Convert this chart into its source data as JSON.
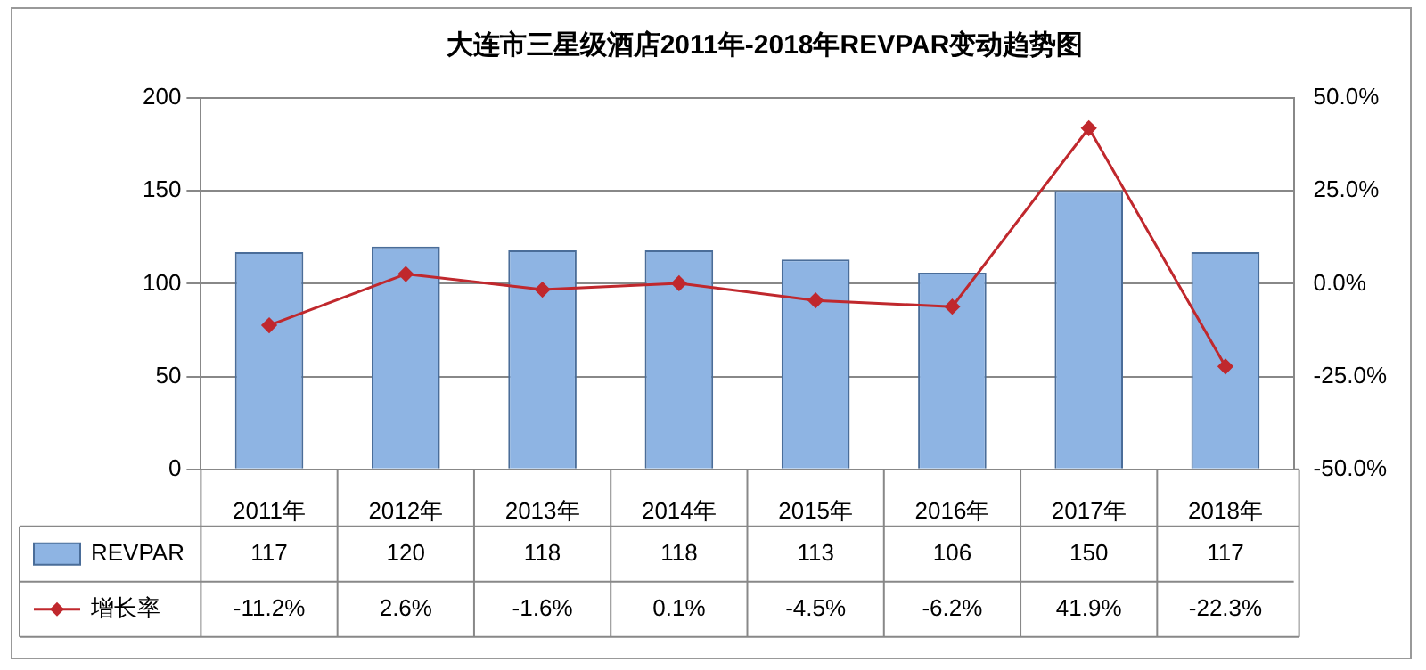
{
  "chart_data": {
    "type": "bar",
    "title": "大连市三星级酒店2011年-2018年REVPAR变动趋势图",
    "categories": [
      "2011年",
      "2012年",
      "2013年",
      "2014年",
      "2015年",
      "2016年",
      "2017年",
      "2018年"
    ],
    "series": [
      {
        "name": "REVPAR",
        "color": "#8eb4e3",
        "values": [
          117,
          120,
          118,
          118,
          113,
          106,
          150,
          117
        ]
      },
      {
        "name": "增长率",
        "type": "line",
        "axis": "y2",
        "color": "#c0282d",
        "marker": "diamond",
        "values": [
          -11.2,
          2.6,
          -1.6,
          0.1,
          -4.5,
          -6.2,
          41.9,
          -22.3
        ],
        "value_labels": [
          "-11.2%",
          "2.6%",
          "-1.6%",
          "0.1%",
          "-4.5%",
          "-6.2%",
          "41.9%",
          "-22.3%"
        ]
      }
    ],
    "ylim": [
      0,
      200
    ],
    "yticks": [
      0,
      50,
      100,
      150,
      200
    ],
    "y2lim": [
      -50,
      50
    ],
    "y2ticks": [
      {
        "value": -50,
        "label": "-50.0%"
      },
      {
        "value": -25,
        "label": "-25.0%"
      },
      {
        "value": 0,
        "label": "0.0%"
      },
      {
        "value": 25,
        "label": "25.0%"
      },
      {
        "value": 50,
        "label": "50.0%"
      }
    ],
    "grid": "y",
    "legend": "bottom",
    "data_labels": true
  }
}
